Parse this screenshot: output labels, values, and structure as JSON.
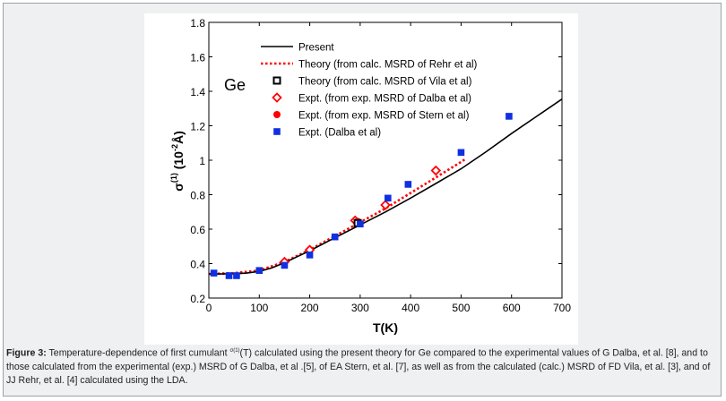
{
  "caption": {
    "label": "Figure 3:",
    "text_before": "Temperature-dependence of first cumulant",
    "sup": "σ(1)",
    "text_after": "(T) calculated using the present theory for Ge compared to the experimental values of G Dalba, et al. [8], and to those calculated from the experimental (exp.) MSRD of G Dalba, et al .[5], of EA Stern, et al. [7], as well as from the calculated (calc.) MSRD of FD Vila, et al. [3], and of JJ Rehr, et al. [4] calculated using the LDA."
  },
  "colors": {
    "present": "#000000",
    "rehr": "#ff0000",
    "dalba_exp": "#ff0000",
    "stern": "#ff0000",
    "dalba": "#1030e0",
    "vila": "#000000"
  },
  "chart_data": {
    "type": "line",
    "annotation": "Ge",
    "xlabel": "T(K)",
    "ylabel_main": "σ",
    "ylabel_sup": "(1)",
    "ylabel_units": "(10",
    "ylabel_units_sup": "-2",
    "ylabel_units_end": "Å)",
    "xlim": [
      0,
      700
    ],
    "ylim": [
      0.2,
      1.8
    ],
    "xticks": [
      0,
      100,
      200,
      300,
      400,
      500,
      600,
      700
    ],
    "yticks": [
      0.2,
      0.4,
      0.6,
      0.8,
      1,
      1.2,
      1.4,
      1.6,
      1.8
    ],
    "ytick_labels": [
      "0.2",
      "0.4",
      "0.6",
      "0.8",
      "1",
      "1.2",
      "1.4",
      "1.6",
      "1.8"
    ],
    "legend_position": "top-left",
    "series": [
      {
        "name": "Present",
        "style": "solid-line",
        "x": [
          0,
          25,
          50,
          75,
          100,
          125,
          150,
          175,
          200,
          250,
          300,
          350,
          400,
          450,
          500,
          550,
          600,
          650,
          700
        ],
        "y": [
          0.34,
          0.34,
          0.341,
          0.345,
          0.355,
          0.375,
          0.405,
          0.44,
          0.475,
          0.55,
          0.625,
          0.7,
          0.78,
          0.865,
          0.95,
          1.05,
          1.155,
          1.255,
          1.355
        ]
      },
      {
        "name": "Theory (from calc. MSRD of Rehr et al)",
        "style": "dotted-line",
        "x": [
          0,
          50,
          100,
          150,
          200,
          250,
          300,
          350,
          400,
          450,
          500,
          510
        ],
        "y": [
          0.34,
          0.345,
          0.36,
          0.41,
          0.48,
          0.56,
          0.64,
          0.72,
          0.81,
          0.9,
          0.99,
          1.01
        ]
      },
      {
        "name": "Theory (from calc. MSRD of Vila et al)",
        "style": "open-square",
        "x": [
          295
        ],
        "y": [
          0.635
        ]
      },
      {
        "name": "Expt. (from exp. MSRD of Dalba et al)",
        "style": "open-diamond",
        "x": [
          150,
          200,
          290,
          350,
          450
        ],
        "y": [
          0.41,
          0.48,
          0.65,
          0.74,
          0.94
        ]
      },
      {
        "name": "Expt. (from exp. MSRD of Stern et al)",
        "style": "filled-circle",
        "x": [
          295
        ],
        "y": [
          0.645
        ]
      },
      {
        "name": "Expt. (Dalba et al)",
        "style": "filled-square",
        "x": [
          10,
          40,
          55,
          100,
          150,
          200,
          250,
          300,
          355,
          395,
          500,
          595
        ],
        "y": [
          0.345,
          0.33,
          0.33,
          0.36,
          0.39,
          0.45,
          0.555,
          0.63,
          0.78,
          0.86,
          1.045,
          1.255
        ]
      }
    ]
  }
}
